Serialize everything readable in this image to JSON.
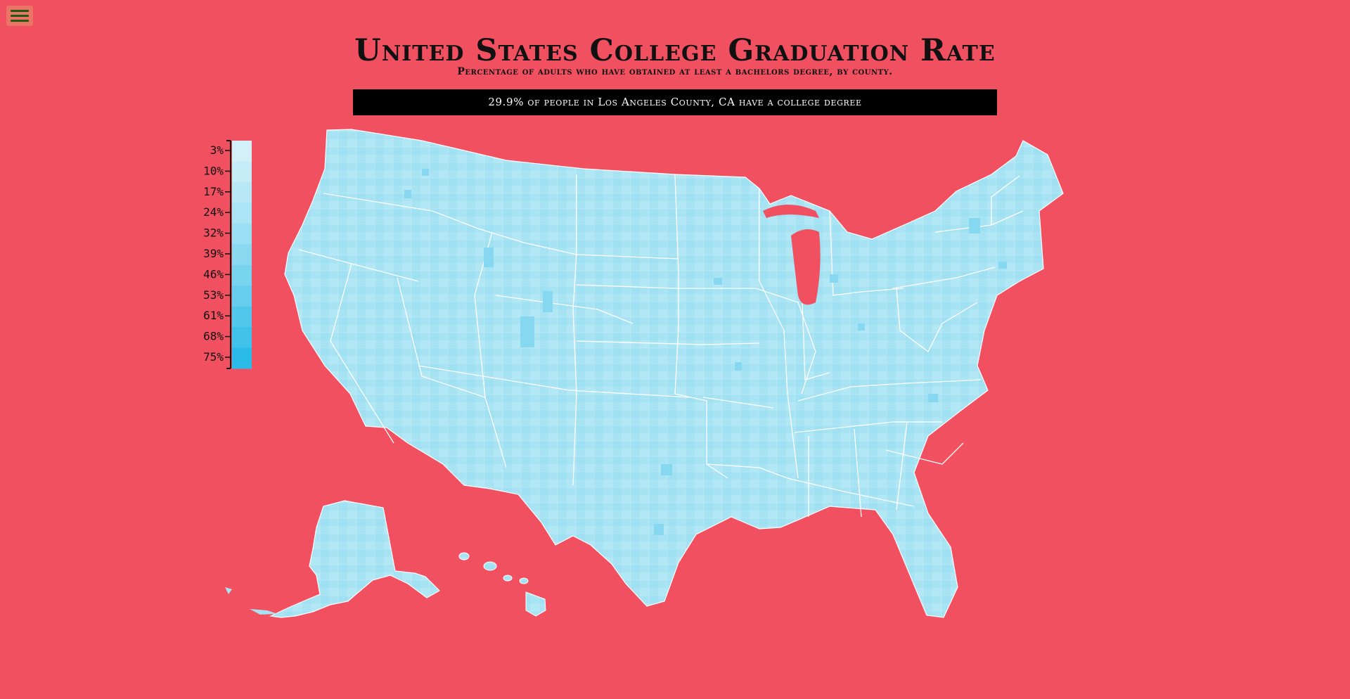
{
  "header": {
    "title": "United States College Graduation Rate",
    "subtitle": "Percentage of adults who have obtained at least a bachelors degree, by county."
  },
  "tooltip": {
    "text": "29.9% of people in Los Angeles County, CA have a college degree"
  },
  "legend": {
    "ticks": [
      "3%",
      "10%",
      "17%",
      "24%",
      "32%",
      "39%",
      "46%",
      "53%",
      "61%",
      "68%",
      "75%"
    ],
    "colors": [
      "#d3f0f8",
      "#c6ecf7",
      "#b8e8f6",
      "#abe4f4",
      "#9adff3",
      "#8ad9f1",
      "#78d3ef",
      "#66cdee",
      "#52c7ec",
      "#3fc1ea",
      "#2bbbe8"
    ]
  },
  "colors": {
    "background": "#f05060",
    "county_fill": "#a7e3f3",
    "state_border": "#ffffff",
    "menu_button": "#ea7466",
    "menu_bars": "#1f5a16"
  },
  "menu": {
    "icon": "hamburger-icon"
  }
}
